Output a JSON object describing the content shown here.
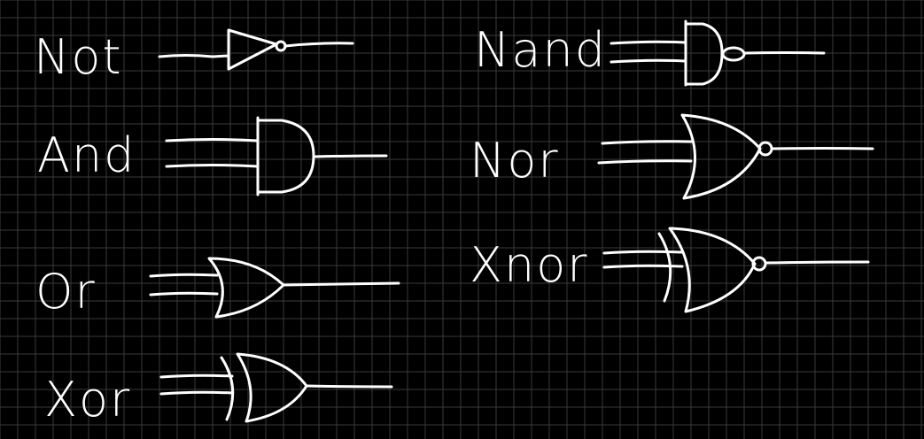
{
  "gates": [
    {
      "id": "not",
      "label": "Not",
      "symbol": "not-gate"
    },
    {
      "id": "and",
      "label": "And",
      "symbol": "and-gate"
    },
    {
      "id": "or",
      "label": "Or",
      "symbol": "or-gate"
    },
    {
      "id": "xor",
      "label": "Xor",
      "symbol": "xor-gate"
    },
    {
      "id": "nand",
      "label": "Nand",
      "symbol": "nand-gate"
    },
    {
      "id": "nor",
      "label": "Nor",
      "symbol": "nor-gate"
    },
    {
      "id": "xnor",
      "label": "Xnor",
      "symbol": "xnor-gate"
    }
  ],
  "colors": {
    "background": "#000000",
    "grid": "#3a3a3a",
    "ink": "#ffffff"
  }
}
